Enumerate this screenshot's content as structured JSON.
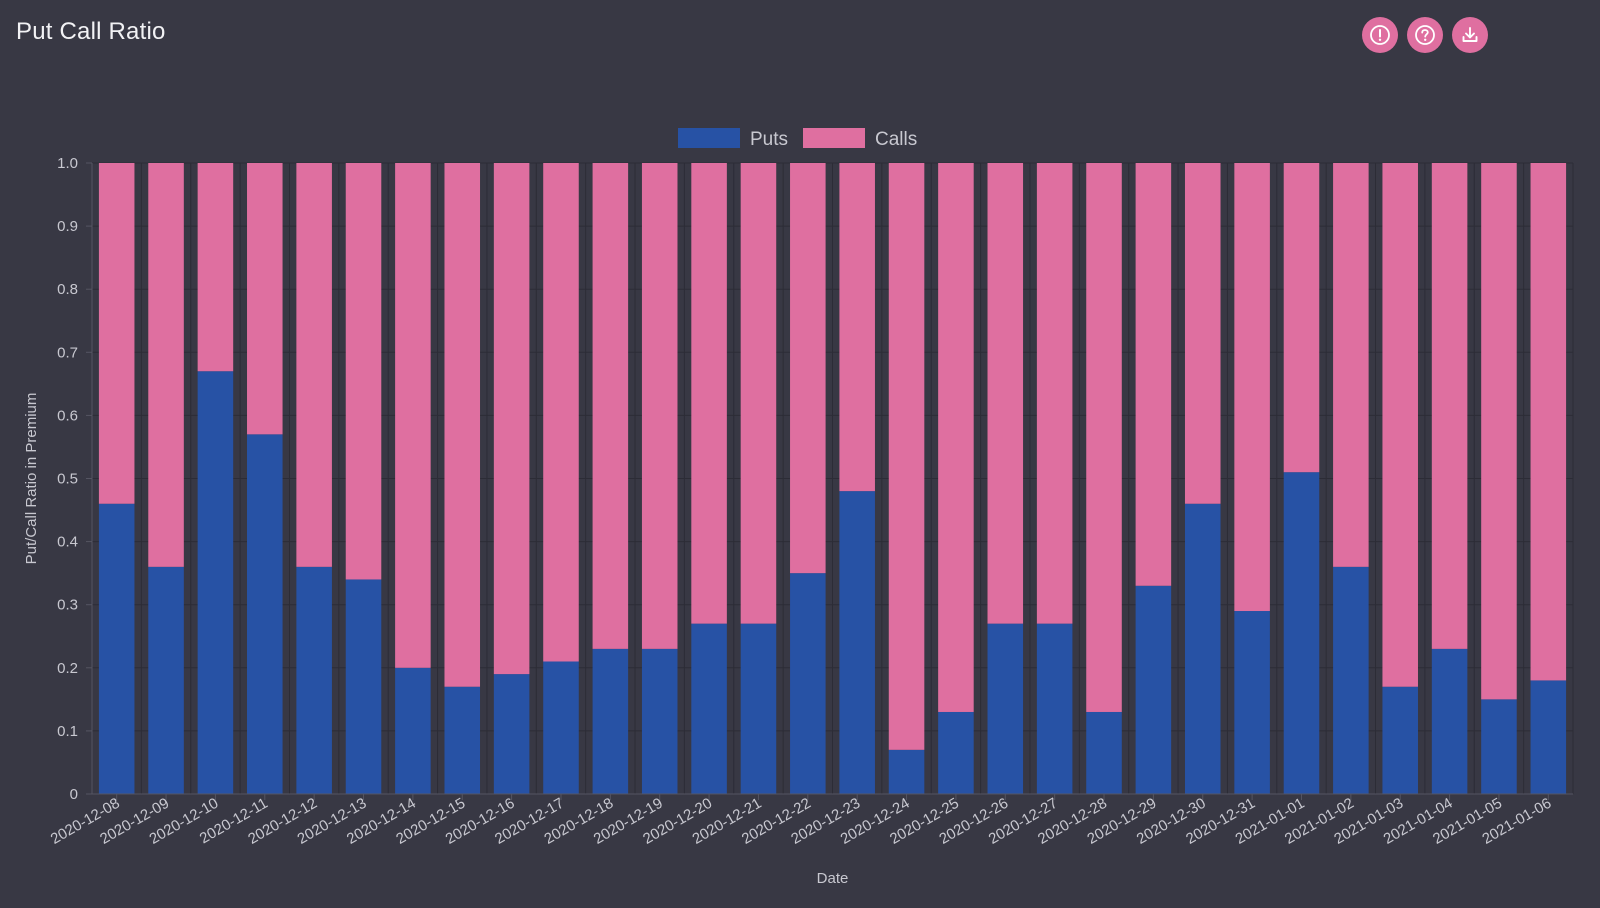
{
  "page": {
    "title": "Put Call Ratio"
  },
  "toolbar": [
    {
      "name": "alert-button",
      "icon": "exclamation-circle-icon"
    },
    {
      "name": "help-button",
      "icon": "question-circle-icon"
    },
    {
      "name": "download-button",
      "icon": "download-icon"
    }
  ],
  "chart_data": {
    "type": "bar",
    "stacked": true,
    "categories": [
      "2020-12-08",
      "2020-12-09",
      "2020-12-10",
      "2020-12-11",
      "2020-12-12",
      "2020-12-13",
      "2020-12-14",
      "2020-12-15",
      "2020-12-16",
      "2020-12-17",
      "2020-12-18",
      "2020-12-19",
      "2020-12-20",
      "2020-12-21",
      "2020-12-22",
      "2020-12-23",
      "2020-12-24",
      "2020-12-25",
      "2020-12-26",
      "2020-12-27",
      "2020-12-28",
      "2020-12-29",
      "2020-12-30",
      "2020-12-31",
      "2021-01-01",
      "2021-01-02",
      "2021-01-03",
      "2021-01-04",
      "2021-01-05",
      "2021-01-06"
    ],
    "series": [
      {
        "name": "Puts",
        "color": "#2752a5",
        "values": [
          0.46,
          0.36,
          0.67,
          0.57,
          0.36,
          0.34,
          0.2,
          0.17,
          0.19,
          0.21,
          0.23,
          0.23,
          0.27,
          0.27,
          0.35,
          0.48,
          0.07,
          0.13,
          0.27,
          0.27,
          0.13,
          0.33,
          0.46,
          0.29,
          0.51,
          0.36,
          0.17,
          0.23,
          0.15,
          0.18
        ]
      },
      {
        "name": "Calls",
        "color": "#df6fa0",
        "values": [
          0.54,
          0.64,
          0.33,
          0.43,
          0.64,
          0.66,
          0.8,
          0.83,
          0.81,
          0.79,
          0.77,
          0.77,
          0.73,
          0.73,
          0.65,
          0.52,
          0.93,
          0.87,
          0.73,
          0.73,
          0.87,
          0.67,
          0.54,
          0.71,
          0.49,
          0.64,
          0.83,
          0.77,
          0.85,
          0.82
        ]
      }
    ],
    "xlabel": "Date",
    "ylabel": "Put/Call Ratio in Premium",
    "ylim": [
      0,
      1
    ],
    "yticks": [
      "0",
      "0.1",
      "0.2",
      "0.3",
      "0.4",
      "0.5",
      "0.6",
      "0.7",
      "0.8",
      "0.9",
      "1.0"
    ],
    "grid": true,
    "legend_position": "top-center",
    "colors": {
      "background": "#383844",
      "grid": "#2c2c36",
      "text": "#c8c8d0"
    }
  }
}
